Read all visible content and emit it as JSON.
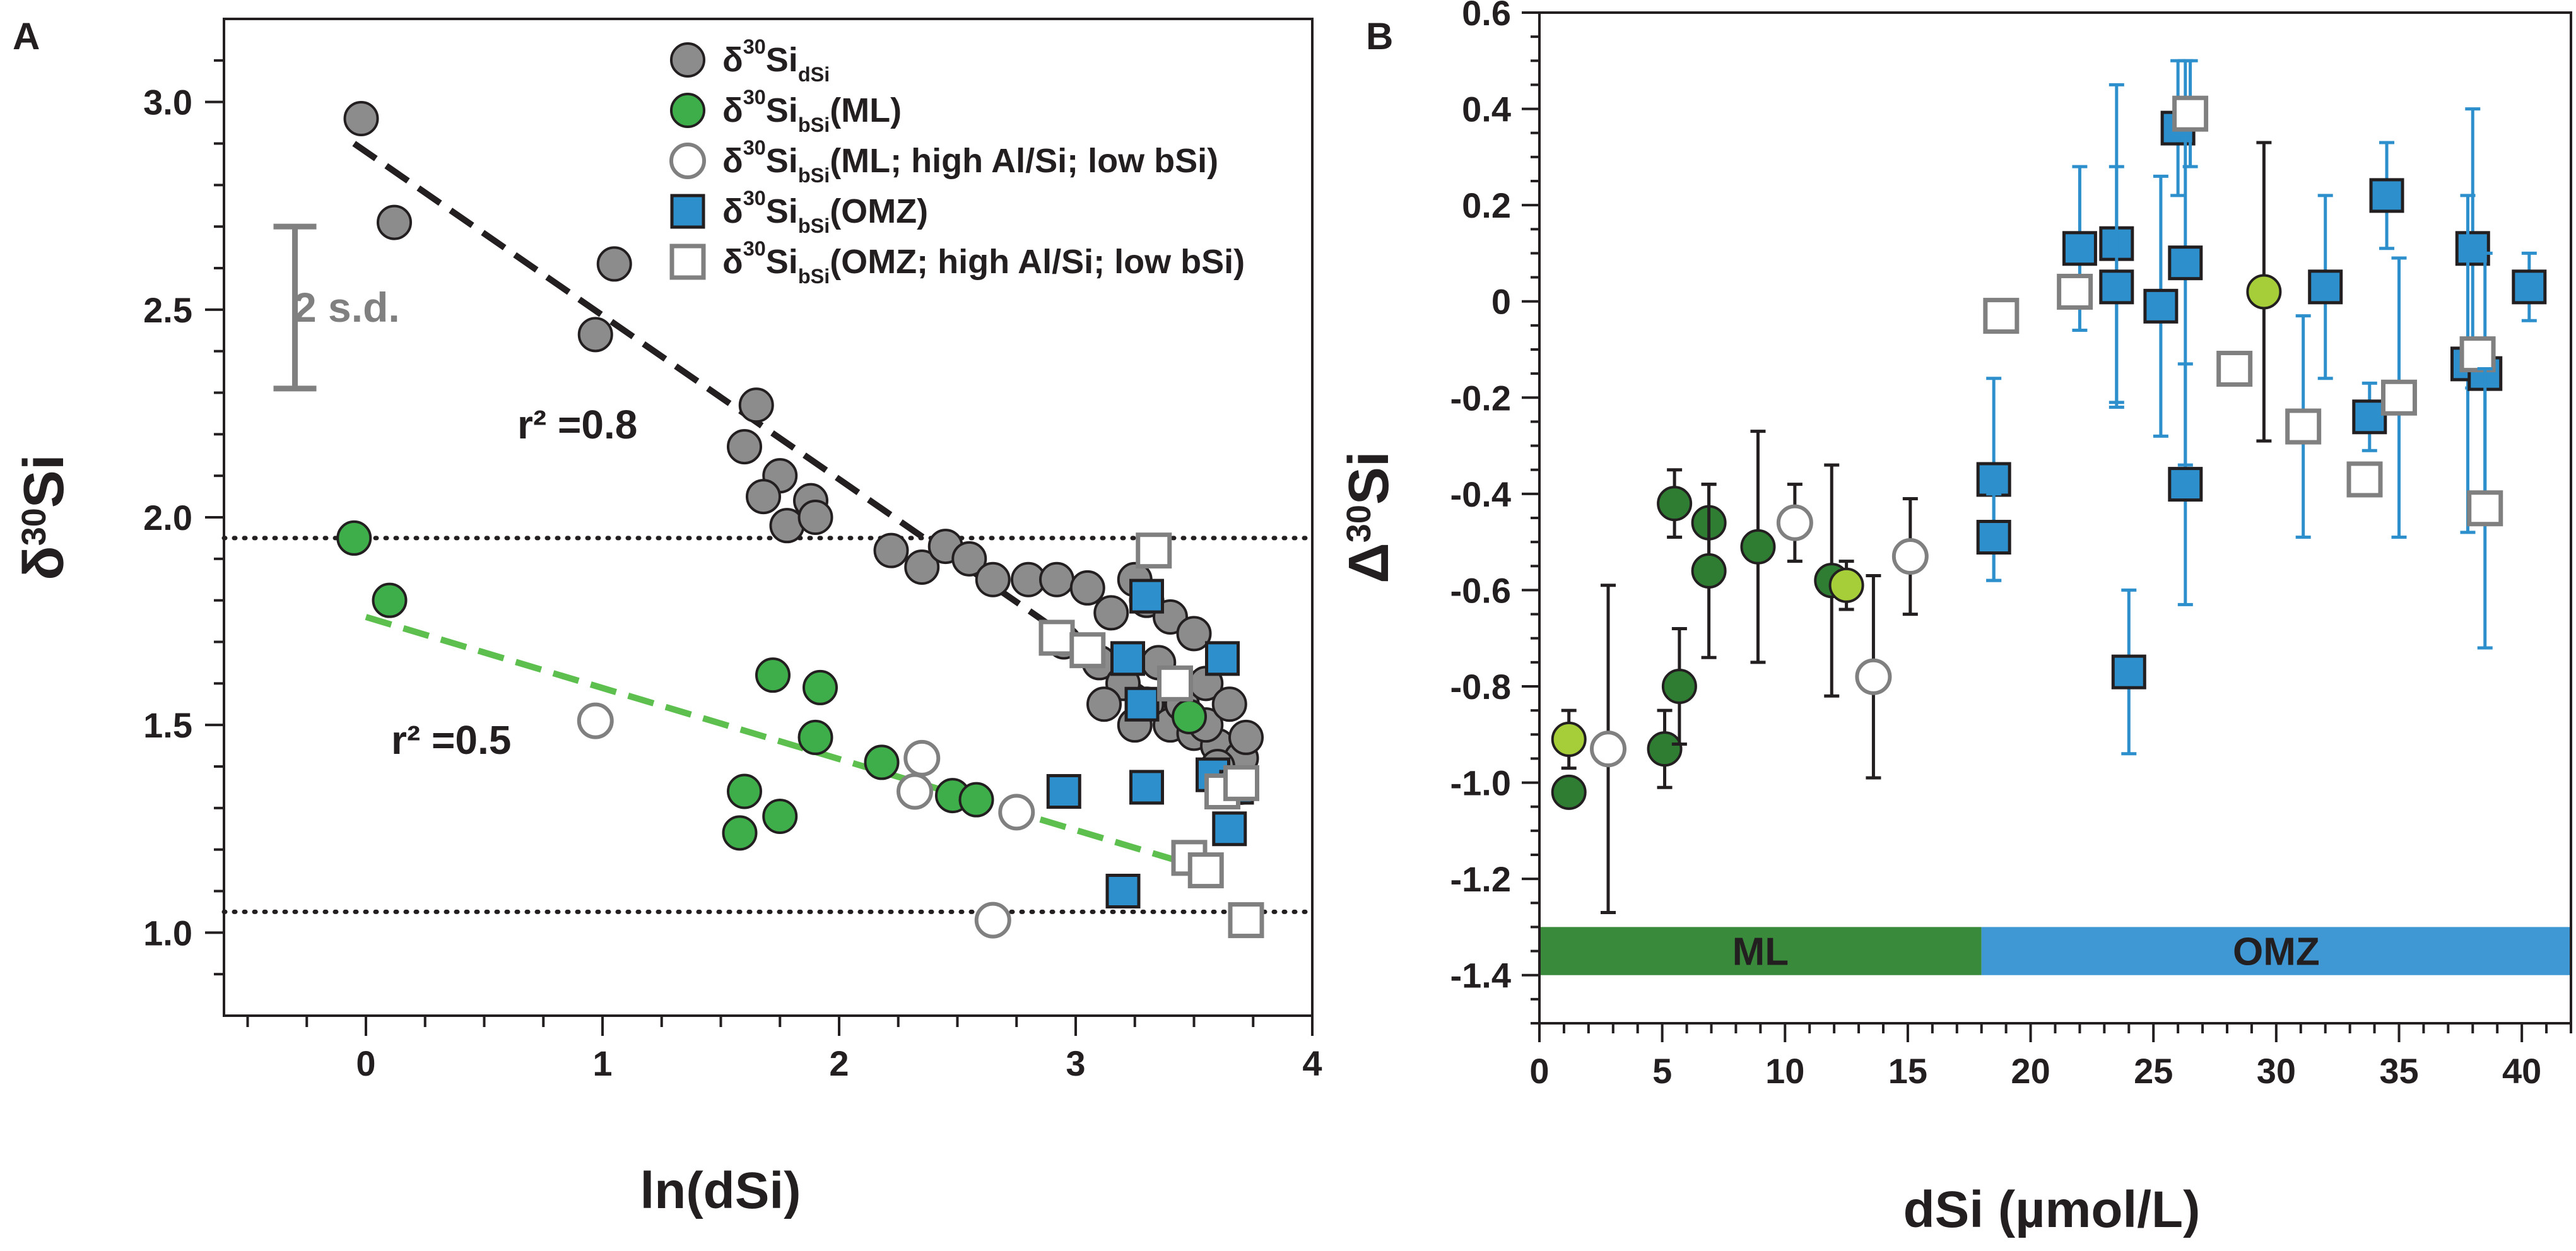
{
  "colors": {
    "dsi_fill": "#8c8c8c",
    "ml_fill": "#3eae4a",
    "ml_dark_fill": "#2e7d32",
    "ml_light_fill": "#a6ce39",
    "omz_fill": "#2d8fcb",
    "hollow_stroke": "#808080",
    "errorbar_blue": "#2d8fcb",
    "band_ml": "#3a8a3c",
    "band_omz": "#3f98d3",
    "trend_black": "#231f20",
    "trend_green": "#5cbf4e"
  },
  "chart_data": [
    {
      "panel": "A",
      "type": "scatter",
      "xlabel": "ln(dSi)",
      "ylabel": "δ30Si",
      "xlim": [
        -0.6,
        4.0
      ],
      "ylim": [
        0.8,
        3.2
      ],
      "xticks": [
        "0",
        "1",
        "2",
        "3",
        "4"
      ],
      "yticks": [
        "1.0",
        "1.5",
        "2.0",
        "2.5",
        "3.0"
      ],
      "reference_lines_y": [
        1.95,
        1.05
      ],
      "sd_bar": {
        "label": "2 s.d.",
        "x": -0.3,
        "y_low": 2.31,
        "y_high": 2.7
      },
      "legend": [
        {
          "label": "δ30SidSi",
          "main": "δ",
          "sup": "30",
          "rest": "Si",
          "sub": "dSi",
          "tail": "",
          "marker": "circle-gray"
        },
        {
          "label": "δ30SibSi(ML)",
          "main": "δ",
          "sup": "30",
          "rest": "Si",
          "sub": "bSi",
          "tail": "(ML)",
          "marker": "circle-green"
        },
        {
          "label": "δ30SibSi(ML; high Al/Si; low bSi)",
          "main": "δ",
          "sup": "30",
          "rest": "Si",
          "sub": "bSi",
          "tail": "(ML; high Al/Si; low bSi)",
          "marker": "circle-hollow"
        },
        {
          "label": "δ30SibSi(OMZ)",
          "main": "δ",
          "sup": "30",
          "rest": "Si",
          "sub": "bSi",
          "tail": "(OMZ)",
          "marker": "square-blue"
        },
        {
          "label": "δ30SibSi(OMZ; high Al/Si; low bSi)",
          "main": "δ",
          "sup": "30",
          "rest": "Si",
          "sub": "bSi",
          "tail": "(OMZ; high Al/Si; low bSi)",
          "marker": "square-hollow"
        }
      ],
      "trendlines": [
        {
          "name": "dSi fit",
          "label": "r² =0.8",
          "x": [
            -0.05,
            3.45
          ],
          "y": [
            2.9,
            1.52
          ]
        },
        {
          "name": "ML fit",
          "label": "r² =0.5",
          "x": [
            0.0,
            3.45
          ],
          "y": [
            1.76,
            1.17
          ]
        }
      ],
      "series": [
        {
          "name": "δ30SidSi",
          "marker": "circle-gray",
          "points": [
            [
              -0.02,
              2.96
            ],
            [
              0.12,
              2.71
            ],
            [
              1.05,
              2.61
            ],
            [
              0.97,
              2.44
            ],
            [
              1.65,
              2.27
            ],
            [
              1.6,
              2.17
            ],
            [
              1.75,
              2.1
            ],
            [
              1.68,
              2.05
            ],
            [
              1.88,
              2.04
            ],
            [
              1.78,
              1.98
            ],
            [
              1.9,
              2.0
            ],
            [
              2.22,
              1.92
            ],
            [
              2.35,
              1.88
            ],
            [
              2.45,
              1.93
            ],
            [
              2.55,
              1.9
            ],
            [
              2.65,
              1.85
            ],
            [
              2.8,
              1.85
            ],
            [
              2.92,
              1.85
            ],
            [
              3.05,
              1.83
            ],
            [
              3.15,
              1.77
            ],
            [
              3.25,
              1.85
            ],
            [
              3.3,
              1.8
            ],
            [
              3.4,
              1.76
            ],
            [
              3.5,
              1.72
            ],
            [
              2.95,
              1.7
            ],
            [
              3.1,
              1.65
            ],
            [
              3.2,
              1.6
            ],
            [
              3.3,
              1.55
            ],
            [
              3.4,
              1.5
            ],
            [
              3.5,
              1.48
            ],
            [
              3.6,
              1.45
            ],
            [
              3.7,
              1.42
            ],
            [
              3.12,
              1.55
            ],
            [
              3.25,
              1.5
            ],
            [
              3.45,
              1.55
            ],
            [
              3.55,
              1.5
            ],
            [
              3.6,
              1.4
            ],
            [
              3.7,
              1.35
            ],
            [
              3.55,
              1.6
            ],
            [
              3.35,
              1.65
            ],
            [
              3.65,
              1.55
            ],
            [
              3.72,
              1.47
            ]
          ]
        },
        {
          "name": "δ30SibSi(ML)",
          "marker": "circle-green",
          "points": [
            [
              -0.05,
              1.95
            ],
            [
              0.1,
              1.8
            ],
            [
              1.72,
              1.62
            ],
            [
              1.92,
              1.59
            ],
            [
              1.9,
              1.47
            ],
            [
              1.6,
              1.34
            ],
            [
              1.75,
              1.28
            ],
            [
              1.58,
              1.24
            ],
            [
              2.18,
              1.41
            ],
            [
              2.48,
              1.33
            ],
            [
              2.58,
              1.32
            ],
            [
              3.48,
              1.52
            ]
          ]
        },
        {
          "name": "δ30SibSi(ML; high Al/Si; low bSi)",
          "marker": "circle-hollow",
          "points": [
            [
              0.97,
              1.51
            ],
            [
              2.35,
              1.42
            ],
            [
              2.32,
              1.34
            ],
            [
              2.75,
              1.29
            ],
            [
              2.65,
              1.03
            ]
          ]
        },
        {
          "name": "δ30SibSi(OMZ)",
          "marker": "square-blue",
          "points": [
            [
              3.3,
              1.81
            ],
            [
              3.22,
              1.66
            ],
            [
              3.28,
              1.55
            ],
            [
              3.62,
              1.66
            ],
            [
              3.58,
              1.38
            ],
            [
              3.68,
              1.35
            ],
            [
              2.95,
              1.34
            ],
            [
              3.3,
              1.35
            ],
            [
              3.65,
              1.25
            ],
            [
              3.2,
              1.1
            ]
          ]
        },
        {
          "name": "δ30SibSi(OMZ; high Al/Si; low bSi)",
          "marker": "square-hollow",
          "points": [
            [
              3.33,
              1.92
            ],
            [
              2.92,
              1.71
            ],
            [
              3.05,
              1.68
            ],
            [
              3.42,
              1.6
            ],
            [
              3.62,
              1.34
            ],
            [
              3.7,
              1.36
            ],
            [
              3.48,
              1.18
            ],
            [
              3.55,
              1.15
            ],
            [
              3.72,
              1.03
            ]
          ]
        }
      ]
    },
    {
      "panel": "B",
      "type": "scatter",
      "xlabel": "dSi (µmol/L)",
      "ylabel": "Δ30Si",
      "xlim": [
        0,
        42
      ],
      "ylim": [
        -1.5,
        0.6
      ],
      "xticks": [
        "0",
        "5",
        "10",
        "15",
        "20",
        "25",
        "30",
        "35",
        "40"
      ],
      "yticks": [
        "0.6",
        "0.4",
        "0.2",
        "0",
        "-0.2",
        "-0.4",
        "-0.6",
        "-0.8",
        "-1.0",
        "-1.2",
        "-1.4"
      ],
      "bands": [
        {
          "label": "ML",
          "x_from": 0,
          "x_to": 18,
          "y_from": -1.3,
          "y_to": -1.4
        },
        {
          "label": "OMZ",
          "x_from": 18,
          "x_to": 42,
          "y_from": -1.3,
          "y_to": -1.4
        }
      ],
      "series": [
        {
          "name": "ML dark",
          "marker": "circle-darkgreen",
          "points": [
            [
              1.2,
              -1.02,
              0
            ],
            [
              5.1,
              -0.93,
              0.08
            ],
            [
              5.7,
              -0.8,
              0.12
            ],
            [
              5.5,
              -0.42,
              0.07
            ],
            [
              6.9,
              -0.46,
              0.08
            ],
            [
              6.9,
              -0.56,
              0.18
            ],
            [
              8.9,
              -0.51,
              0.24
            ],
            [
              11.9,
              -0.58,
              0.24
            ]
          ]
        },
        {
          "name": "ML light",
          "marker": "circle-lightgreen",
          "points": [
            [
              1.2,
              -0.91,
              0.06
            ],
            [
              12.5,
              -0.59,
              0.05
            ],
            [
              29.5,
              0.02,
              0.31
            ]
          ]
        },
        {
          "name": "ML hollow",
          "marker": "circle-hollow",
          "points": [
            [
              2.8,
              -0.93,
              0.34
            ],
            [
              10.4,
              -0.46,
              0.08
            ],
            [
              13.6,
              -0.78,
              0.21
            ],
            [
              15.1,
              -0.53,
              0.12
            ]
          ]
        },
        {
          "name": "OMZ",
          "marker": "square-blue",
          "points": [
            [
              18.5,
              -0.37,
              0.21
            ],
            [
              18.5,
              -0.49,
              0.09
            ],
            [
              22.0,
              0.11,
              0.17
            ],
            [
              23.5,
              0.12,
              0.33
            ],
            [
              23.5,
              0.03,
              0.25
            ],
            [
              25.3,
              -0.01,
              0.27
            ],
            [
              26.0,
              0.36,
              0.14
            ],
            [
              26.3,
              0.08,
              0.42
            ],
            [
              26.3,
              -0.38,
              0.25
            ],
            [
              24.0,
              -0.77,
              0.17
            ],
            [
              32.0,
              0.03,
              0.19
            ],
            [
              33.8,
              -0.24,
              0.07
            ],
            [
              34.5,
              0.22,
              0.11
            ],
            [
              38.0,
              0.11,
              0.29
            ],
            [
              37.8,
              -0.13,
              0.35
            ],
            [
              38.5,
              -0.15,
              0.25
            ],
            [
              40.3,
              0.03,
              0.07
            ]
          ]
        },
        {
          "name": "OMZ hollow",
          "marker": "square-hollow",
          "points": [
            [
              18.8,
              -0.03,
              0
            ],
            [
              21.8,
              0.02,
              0
            ],
            [
              26.5,
              0.39,
              0.11
            ],
            [
              28.3,
              -0.14,
              0
            ],
            [
              31.1,
              -0.26,
              0.23
            ],
            [
              33.6,
              -0.37,
              0
            ],
            [
              35.0,
              -0.2,
              0.29
            ],
            [
              38.2,
              -0.11,
              0
            ],
            [
              38.5,
              -0.43,
              0.29
            ]
          ]
        }
      ]
    }
  ],
  "panel_a": {
    "letter": "A",
    "r2_black": "r² =0.8",
    "r2_green": "r² =0.5",
    "sd_label": "2 s.d."
  },
  "panel_b": {
    "letter": "B"
  }
}
